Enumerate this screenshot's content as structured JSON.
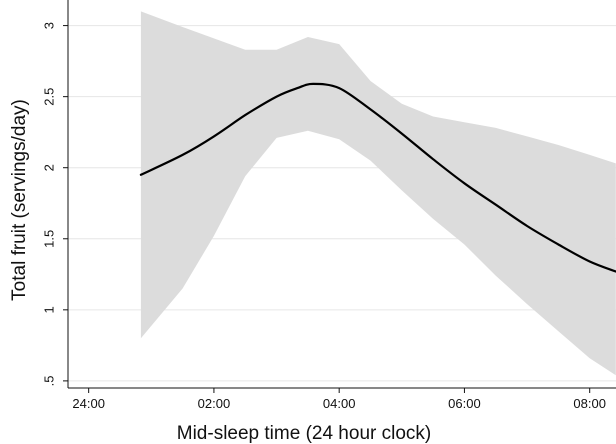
{
  "chart_data": {
    "type": "line",
    "title": "",
    "xlabel": "Mid-sleep time (24 hour clock)",
    "ylabel": "Total fruit (servings/day)",
    "x_unit": "hours",
    "xlim": [
      23.67,
      8.42
    ],
    "ylim": [
      0.45,
      3.18
    ],
    "grid": true,
    "x_ticks": [
      {
        "label": "24:00",
        "value": 24.0
      },
      {
        "label": "02:00",
        "value": 2.0
      },
      {
        "label": "04:00",
        "value": 4.0
      },
      {
        "label": "06:00",
        "value": 6.0
      },
      {
        "label": "08:00",
        "value": 8.0
      }
    ],
    "y_ticks": [
      {
        "label": ".5",
        "value": 0.5
      },
      {
        "label": "1",
        "value": 1.0
      },
      {
        "label": "1.5",
        "value": 1.5
      },
      {
        "label": "2",
        "value": 2.0
      },
      {
        "label": "2.5",
        "value": 2.5
      },
      {
        "label": "3",
        "value": 3.0
      }
    ],
    "series": [
      {
        "style": "line",
        "color": "#000000",
        "x": [
          "00:50",
          "01:30",
          "02:00",
          "02:30",
          "03:00",
          "03:20",
          "03:35",
          "04:00",
          "04:30",
          "05:00",
          "05:30",
          "06:00",
          "06:30",
          "07:00",
          "07:30",
          "08:00",
          "08:25"
        ],
        "y": [
          1.95,
          2.09,
          2.22,
          2.37,
          2.5,
          2.56,
          2.59,
          2.56,
          2.41,
          2.24,
          2.06,
          1.89,
          1.74,
          1.59,
          1.46,
          1.34,
          1.27
        ]
      },
      {
        "style": "band",
        "color": "#dcdcdc",
        "x": [
          "00:50",
          "01:30",
          "02:00",
          "02:30",
          "03:00",
          "03:30",
          "04:00",
          "04:30",
          "05:00",
          "05:30",
          "06:00",
          "06:30",
          "07:00",
          "07:30",
          "08:00",
          "08:25"
        ],
        "upper": [
          3.1,
          2.99,
          2.91,
          2.83,
          2.83,
          2.92,
          2.87,
          2.61,
          2.45,
          2.36,
          2.32,
          2.28,
          2.22,
          2.16,
          2.09,
          2.03
        ],
        "lower": [
          0.8,
          1.15,
          1.52,
          1.94,
          2.21,
          2.26,
          2.2,
          2.05,
          1.84,
          1.64,
          1.46,
          1.24,
          1.04,
          0.85,
          0.66,
          0.54
        ]
      }
    ]
  }
}
